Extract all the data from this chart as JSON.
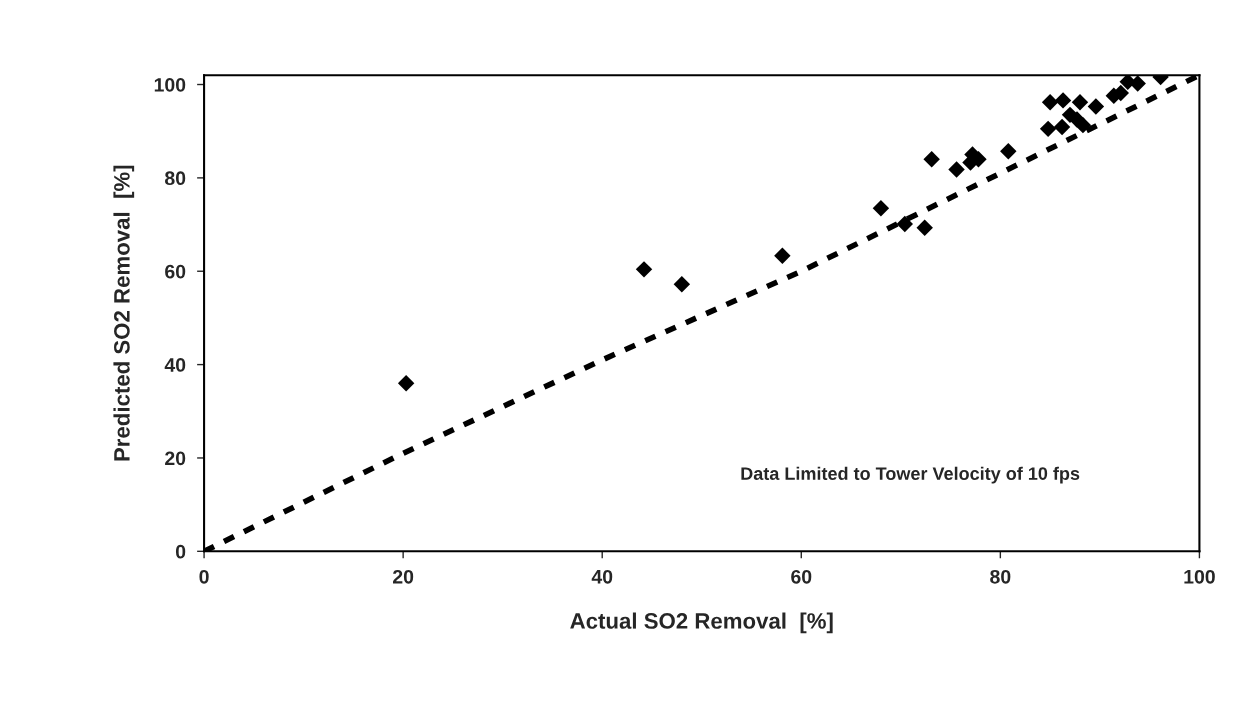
{
  "chart_data": {
    "type": "scatter",
    "xlabel": "Actual SO2 Removal  [%]",
    "ylabel": "Predicted SO2 Removal  [%]",
    "xlim": [
      0,
      100
    ],
    "ylim": [
      0,
      102
    ],
    "xticks": [
      0,
      20,
      40,
      60,
      80,
      100
    ],
    "yticks": [
      0,
      20,
      40,
      60,
      80,
      100
    ],
    "grid": false,
    "legend": false,
    "marker": "diamond",
    "series": [
      {
        "color": "#000000",
        "x": [
          20.3,
          44.2,
          48.0,
          58.1,
          68.0,
          70.4,
          72.4,
          73.1,
          75.6,
          77.2,
          77.0,
          77.8,
          80.8,
          84.8,
          85.0,
          86.2,
          86.3,
          87.0,
          87.7,
          88.0,
          88.3,
          89.6,
          91.4,
          92.1,
          92.8,
          93.8,
          96.1
        ],
        "values": [
          36,
          60.4,
          57.2,
          63.3,
          73.5,
          70.1,
          69.3,
          84.0,
          81.8,
          85.0,
          83.3,
          84.0,
          85.7,
          90.5,
          96.2,
          90.9,
          96.6,
          93.5,
          92.5,
          96.2,
          91.3,
          95.3,
          97.6,
          98.2,
          100.6,
          100.2,
          101.6
        ]
      },
      {
        "type": "line",
        "color": "#000000",
        "line_style": "dashed",
        "marker": "none",
        "x": [
          0,
          20,
          40,
          60,
          80,
          100
        ],
        "values": [
          0,
          21,
          41,
          60,
          81,
          102
        ]
      }
    ],
    "annotations": [
      "Data Limited to Tower Velocity of 10 fps"
    ]
  }
}
